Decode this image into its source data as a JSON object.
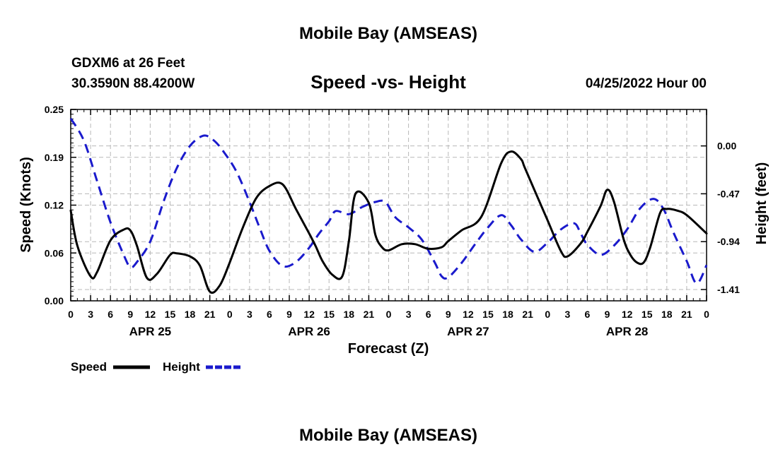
{
  "chart_data": {
    "type": "line",
    "title": "Mobile Bay (AMSEAS)",
    "subtitle": "Speed -vs- Height",
    "station": "GDXM6 at 26 Feet",
    "location": "30.3590N  88.4200W",
    "datetime": "04/25/2022 Hour 00",
    "footer_title": "Mobile Bay (AMSEAS)",
    "xlabel": "Forecast (Z)",
    "ylabel": "Speed (Knots)",
    "y2label": "Height (feet)",
    "xlim": [
      0,
      96
    ],
    "ylim": [
      0,
      0.25
    ],
    "y2lim": [
      -1.521,
      0.358
    ],
    "x_tick_labels": [
      "0",
      "3",
      "6",
      "9",
      "12",
      "15",
      "18",
      "21",
      "0",
      "3",
      "6",
      "9",
      "12",
      "15",
      "18",
      "21",
      "0",
      "3",
      "6",
      "9",
      "12",
      "15",
      "18",
      "21",
      "0",
      "3",
      "6",
      "9",
      "12",
      "15",
      "18",
      "21",
      "0"
    ],
    "y_ticks": [
      {
        "value": 0.0,
        "label": "0.00"
      },
      {
        "value": 0.0625,
        "label": "0.06"
      },
      {
        "value": 0.125,
        "label": "0.12"
      },
      {
        "value": 0.1875,
        "label": "0.19"
      },
      {
        "value": 0.25,
        "label": "0.25"
      }
    ],
    "y2_ticks": [
      {
        "value": 0.0,
        "label": "0.00"
      },
      {
        "value": -0.47,
        "label": "-0.47"
      },
      {
        "value": -0.94,
        "label": "-0.94"
      },
      {
        "value": -1.41,
        "label": "-1.41"
      }
    ],
    "day_labels": [
      {
        "x": 12,
        "label": "APR 25"
      },
      {
        "x": 36,
        "label": "APR 26"
      },
      {
        "x": 60,
        "label": "APR 27"
      },
      {
        "x": 84,
        "label": "APR 28"
      }
    ],
    "grid": true,
    "legend": [
      {
        "name": "Speed",
        "color": "#000000",
        "style": "solid"
      },
      {
        "name": "Height",
        "color": "#1a1acc",
        "style": "dashed"
      }
    ],
    "series": [
      {
        "name": "Speed",
        "axis": "left",
        "color": "#000000",
        "x": [
          0,
          1,
          3,
          4,
          6,
          8,
          9,
          10,
          11.5,
          13,
          15,
          16,
          18,
          19.5,
          21,
          22.5,
          24,
          26,
          28,
          30,
          32,
          34,
          36,
          37,
          38,
          39.5,
          41,
          42,
          43,
          45,
          46,
          47,
          48,
          50,
          52,
          54,
          56,
          57,
          59,
          62,
          65,
          66.5,
          68,
          68.5,
          70,
          72,
          74,
          75,
          77,
          78,
          80,
          81,
          82,
          83.5,
          84.5,
          85.5,
          86.5,
          87.5,
          89,
          90,
          91.5,
          93,
          96
        ],
        "values": [
          0.118,
          0.072,
          0.032,
          0.038,
          0.079,
          0.093,
          0.092,
          0.072,
          0.03,
          0.035,
          0.06,
          0.062,
          0.058,
          0.046,
          0.012,
          0.02,
          0.05,
          0.096,
          0.134,
          0.15,
          0.152,
          0.12,
          0.088,
          0.071,
          0.052,
          0.034,
          0.032,
          0.078,
          0.14,
          0.128,
          0.086,
          0.07,
          0.066,
          0.074,
          0.074,
          0.068,
          0.07,
          0.078,
          0.092,
          0.11,
          0.18,
          0.195,
          0.185,
          0.175,
          0.145,
          0.105,
          0.065,
          0.058,
          0.075,
          0.09,
          0.124,
          0.145,
          0.13,
          0.08,
          0.06,
          0.05,
          0.05,
          0.07,
          0.115,
          0.12,
          0.118,
          0.112,
          0.088
        ]
      },
      {
        "name": "Height",
        "axis": "right",
        "color": "#1a1acc",
        "x": [
          0,
          2,
          4,
          6,
          8,
          9,
          10,
          12,
          14,
          16,
          18,
          20,
          21.5,
          23,
          25,
          27,
          28.5,
          30,
          32,
          34,
          36,
          37.5,
          39,
          40,
          42,
          44,
          46,
          47.5,
          49,
          51,
          53,
          55,
          56,
          57,
          59,
          61,
          63,
          65,
          66.5,
          68,
          70,
          72,
          74,
          76,
          77,
          78,
          80,
          82,
          84,
          86,
          88,
          89.5,
          91,
          93,
          94.5,
          96
        ],
        "values": [
          0.27,
          0.05,
          -0.35,
          -0.75,
          -1.07,
          -1.19,
          -1.14,
          -0.94,
          -0.55,
          -0.22,
          0.0,
          0.1,
          0.06,
          -0.05,
          -0.25,
          -0.55,
          -0.8,
          -1.03,
          -1.18,
          -1.14,
          -1.0,
          -0.86,
          -0.74,
          -0.64,
          -0.67,
          -0.6,
          -0.55,
          -0.55,
          -0.7,
          -0.8,
          -0.92,
          -1.15,
          -1.28,
          -1.29,
          -1.15,
          -0.97,
          -0.8,
          -0.68,
          -0.78,
          -0.92,
          -1.04,
          -0.95,
          -0.82,
          -0.76,
          -0.86,
          -0.97,
          -1.07,
          -0.98,
          -0.82,
          -0.61,
          -0.52,
          -0.62,
          -0.85,
          -1.13,
          -1.35,
          -1.17
        ]
      }
    ]
  }
}
